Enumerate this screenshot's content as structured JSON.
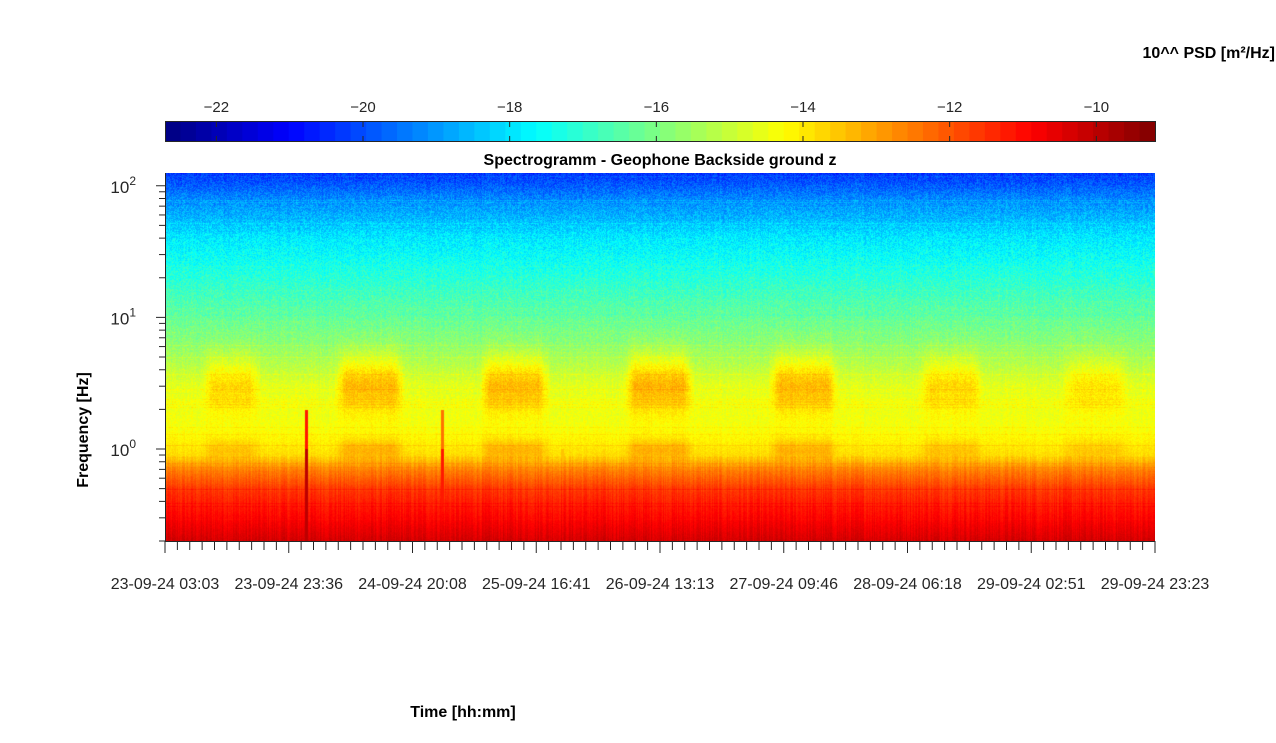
{
  "colorbar": {
    "title": "10^^ PSD [m²/Hz]",
    "ticks": [
      -22,
      -20,
      -18,
      -16,
      -14,
      -12,
      -10
    ],
    "range": [
      -22.7,
      -9.2
    ],
    "colormap": "jet"
  },
  "chart_data": {
    "type": "heatmap",
    "title": "Spectrogramm - Geophone Backside ground z",
    "xlabel": "Time [hh:mm]",
    "ylabel": "Frequency [Hz]",
    "y_scale": "log",
    "ylim": [
      0.2,
      125
    ],
    "y_ticks": [
      {
        "value": 1,
        "base": "10",
        "exp": "0"
      },
      {
        "value": 10,
        "base": "10",
        "exp": "1"
      },
      {
        "value": 100,
        "base": "10",
        "exp": "2"
      }
    ],
    "x_start": "23-09-24 03:03",
    "x_end": "29-09-24 23:23",
    "x_tick_labels": [
      "23-09-24  03:03",
      "23-09-24  23:36",
      "24-09-24  20:08",
      "25-09-24  16:41",
      "26-09-24  13:13",
      "27-09-24  09:46",
      "28-09-24  06:18",
      "29-09-24  02:51",
      "29-09-24  23:23"
    ],
    "color_value_range": [
      -22.7,
      -9.2
    ],
    "profile": [
      {
        "freq": 0.2,
        "log_psd": -10.3
      },
      {
        "freq": 0.3,
        "log_psd": -10.9
      },
      {
        "freq": 0.5,
        "log_psd": -11.6
      },
      {
        "freq": 0.7,
        "log_psd": -12.6
      },
      {
        "freq": 0.9,
        "log_psd": -13.8
      },
      {
        "freq": 1.5,
        "log_psd": -14.4
      },
      {
        "freq": 3,
        "log_psd": -14.6
      },
      {
        "freq": 6,
        "log_psd": -15.7
      },
      {
        "freq": 10,
        "log_psd": -16.3
      },
      {
        "freq": 20,
        "log_psd": -17.1
      },
      {
        "freq": 40,
        "log_psd": -17.9
      },
      {
        "freq": 80,
        "log_psd": -19.2
      },
      {
        "freq": 125,
        "log_psd": -20.3
      }
    ],
    "activity_windows": [
      {
        "start": "23-09-24 09:00",
        "end": "23-09-24 19:00",
        "log_psd_increase": 0.9
      },
      {
        "start": "24-09-24 07:00",
        "end": "24-09-24 19:00",
        "log_psd_increase": 1.3
      },
      {
        "start": "25-09-24 07:00",
        "end": "25-09-24 19:00",
        "log_psd_increase": 1.3
      },
      {
        "start": "26-09-24 07:00",
        "end": "26-09-24 19:00",
        "log_psd_increase": 1.4
      },
      {
        "start": "27-09-24 07:00",
        "end": "27-09-24 19:00",
        "log_psd_increase": 1.3
      },
      {
        "start": "28-09-24 08:00",
        "end": "28-09-24 19:00",
        "log_psd_increase": 0.9
      },
      {
        "start": "29-09-24 08:00",
        "end": "29-09-24 19:00",
        "log_psd_increase": 0.7
      }
    ],
    "transients": [
      {
        "time": "24-09-24 02:30",
        "log_psd": -10.0
      },
      {
        "time": "25-09-24 01:00",
        "log_psd": -11.2
      },
      {
        "time": "25-09-24 21:00",
        "log_psd": -13.5
      }
    ]
  }
}
